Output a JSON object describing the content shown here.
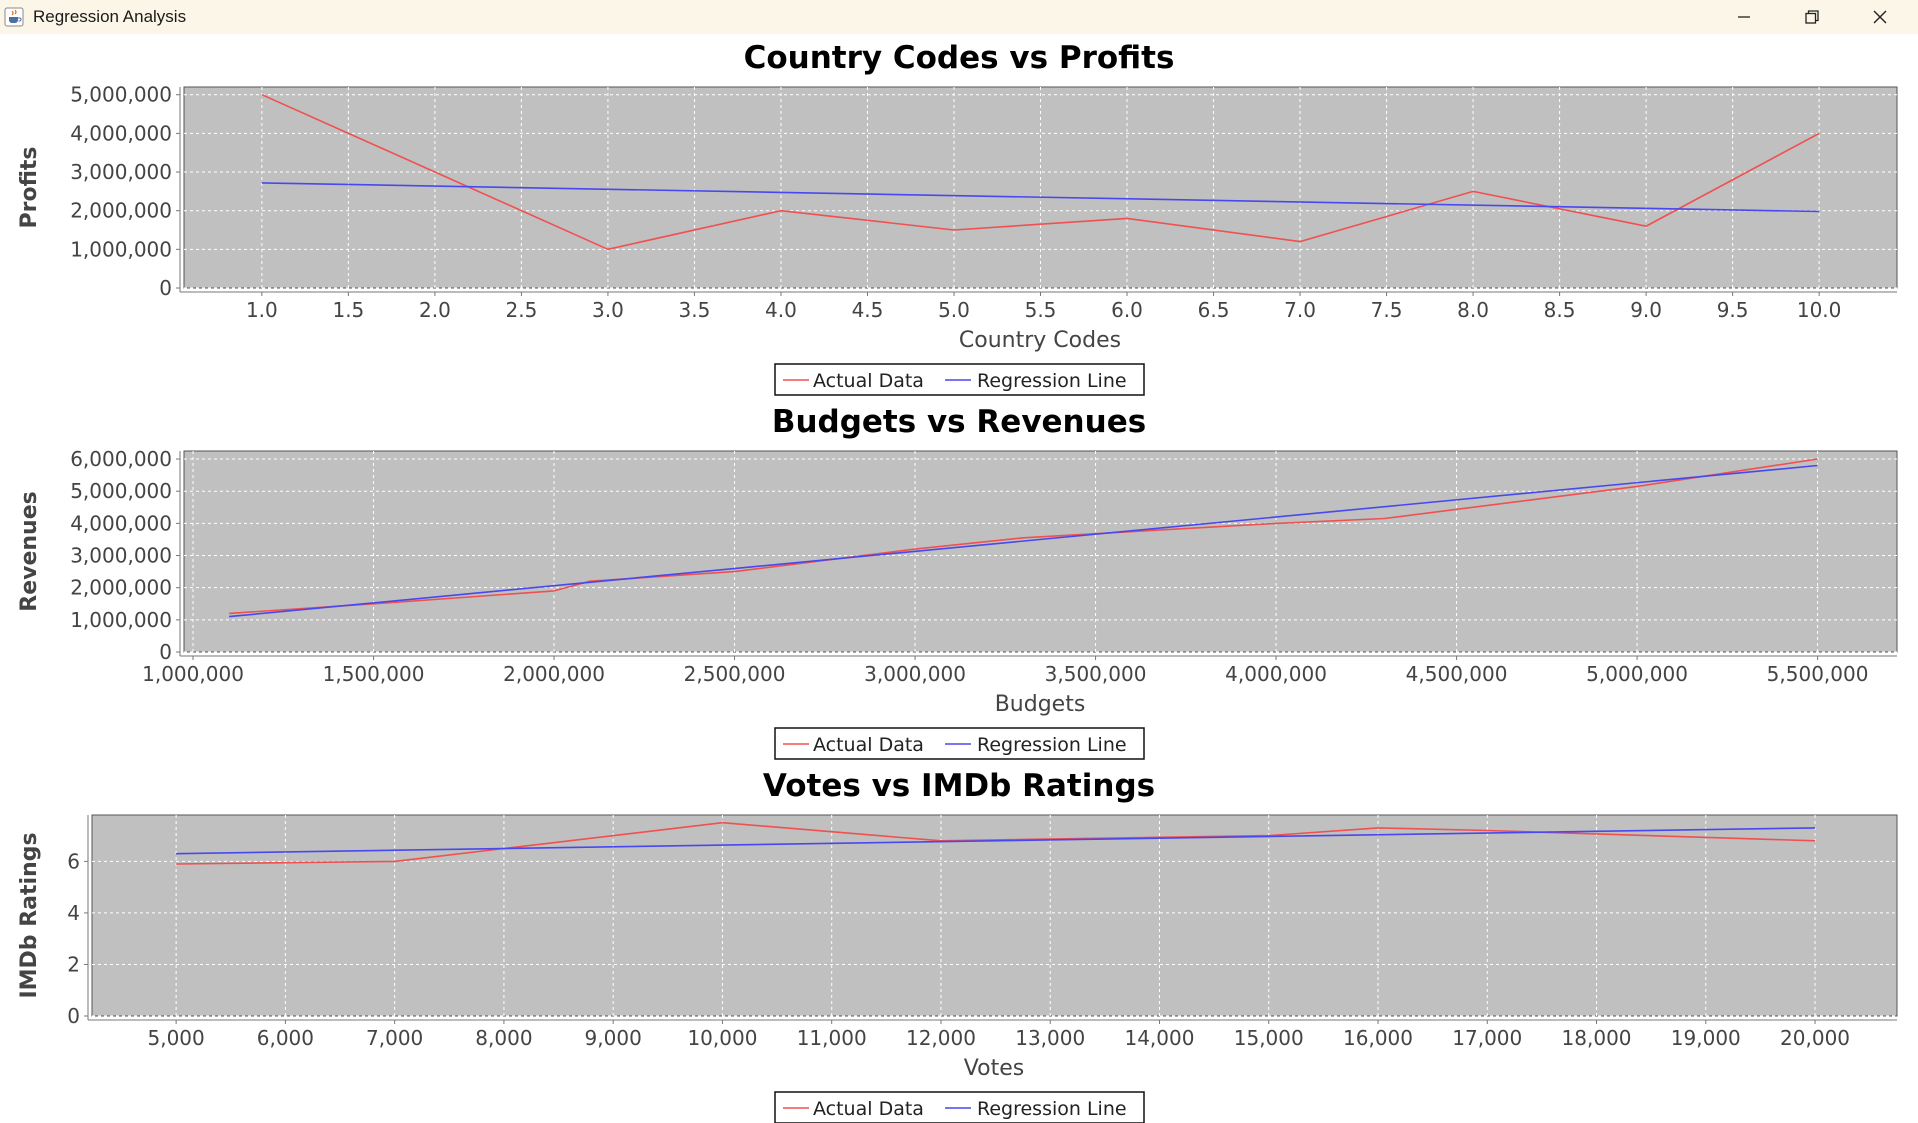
{
  "window": {
    "title": "Regression Analysis",
    "icons": {
      "app": "java-cup-icon",
      "minimize": "minimize-icon",
      "maximize": "restore-icon",
      "close": "close-icon"
    }
  },
  "colors": {
    "actual": "#f05050",
    "regression": "#4848f0",
    "plot_bg": "#c0c0c0",
    "grid": "#ffffff"
  },
  "chart_data": [
    {
      "type": "line",
      "title": "Country Codes vs Profits",
      "xlabel": "Country Codes",
      "ylabel": "Profits",
      "xlim": [
        0.55,
        10.45
      ],
      "ylim": [
        0,
        5200000
      ],
      "xticks": [
        1.0,
        1.5,
        2.0,
        2.5,
        3.0,
        3.5,
        4.0,
        4.5,
        5.0,
        5.5,
        6.0,
        6.5,
        7.0,
        7.5,
        8.0,
        8.5,
        9.0,
        9.5,
        10.0
      ],
      "xtick_labels": [
        "1.0",
        "1.5",
        "2.0",
        "2.5",
        "3.0",
        "3.5",
        "4.0",
        "4.5",
        "5.0",
        "5.5",
        "6.0",
        "6.5",
        "7.0",
        "7.5",
        "8.0",
        "8.5",
        "9.0",
        "9.5",
        "10.0"
      ],
      "yticks": [
        0,
        1000000,
        2000000,
        3000000,
        4000000,
        5000000
      ],
      "ytick_labels": [
        "0",
        "1,000,000",
        "2,000,000",
        "3,000,000",
        "4,000,000",
        "5,000,000"
      ],
      "grid": true,
      "legend": "bottom",
      "series": [
        {
          "name": "Actual Data",
          "color": "#f05050",
          "x": [
            1,
            2,
            3,
            4,
            5,
            6,
            7,
            8,
            9,
            10
          ],
          "y": [
            5000000,
            3000000,
            1000000,
            2000000,
            1500000,
            1800000,
            1200000,
            2500000,
            1600000,
            4000000
          ]
        },
        {
          "name": "Regression Line",
          "color": "#4848f0",
          "x": [
            1,
            10
          ],
          "y": [
            2720000,
            1980000
          ]
        }
      ]
    },
    {
      "type": "line",
      "title": "Budgets vs Revenues",
      "xlabel": "Budgets",
      "ylabel": "Revenues",
      "xlim": [
        975000,
        5720000
      ],
      "ylim": [
        0,
        6250000
      ],
      "xticks": [
        1000000,
        1500000,
        2000000,
        2500000,
        3000000,
        3500000,
        4000000,
        4500000,
        5000000,
        5500000
      ],
      "xtick_labels": [
        "1,000,000",
        "1,500,000",
        "2,000,000",
        "2,500,000",
        "3,000,000",
        "3,500,000",
        "4,000,000",
        "4,500,000",
        "5,000,000",
        "5,500,000"
      ],
      "yticks": [
        0,
        1000000,
        2000000,
        3000000,
        4000000,
        5000000,
        6000000
      ],
      "ytick_labels": [
        "0",
        "1,000,000",
        "2,000,000",
        "3,000,000",
        "4,000,000",
        "5,000,000",
        "6,000,000"
      ],
      "grid": true,
      "legend": "bottom",
      "series": [
        {
          "name": "Actual Data",
          "color": "#f05050",
          "x": [
            1100000,
            1500000,
            2000000,
            2100000,
            2500000,
            3000000,
            3300000,
            4000000,
            4300000,
            5000000,
            5500000
          ],
          "y": [
            1200000,
            1500000,
            1900000,
            2200000,
            2500000,
            3200000,
            3550000,
            4000000,
            4150000,
            5150000,
            6000000
          ]
        },
        {
          "name": "Regression Line",
          "color": "#4848f0",
          "x": [
            1100000,
            5500000
          ],
          "y": [
            1100000,
            5800000
          ]
        }
      ]
    },
    {
      "type": "line",
      "title": "Votes vs IMDb Ratings",
      "xlabel": "Votes",
      "ylabel": "IMDb Ratings",
      "xlim": [
        4230,
        20750
      ],
      "ylim": [
        0,
        7.8
      ],
      "xticks": [
        5000,
        6000,
        7000,
        8000,
        9000,
        10000,
        11000,
        12000,
        13000,
        14000,
        15000,
        16000,
        17000,
        18000,
        19000,
        20000
      ],
      "xtick_labels": [
        "5,000",
        "6,000",
        "7,000",
        "8,000",
        "9,000",
        "10,000",
        "11,000",
        "12,000",
        "13,000",
        "14,000",
        "15,000",
        "16,000",
        "17,000",
        "18,000",
        "19,000",
        "20,000"
      ],
      "yticks": [
        0,
        2,
        4,
        6
      ],
      "ytick_labels": [
        "0",
        "2",
        "4",
        "6"
      ],
      "grid": true,
      "legend": "bottom",
      "series": [
        {
          "name": "Actual Data",
          "color": "#f05050",
          "x": [
            5000,
            7000,
            8000,
            10000,
            12000,
            15000,
            16000,
            17000,
            20000
          ],
          "y": [
            5.9,
            6.0,
            6.5,
            7.5,
            6.8,
            7.0,
            7.3,
            7.2,
            6.8
          ]
        },
        {
          "name": "Regression Line",
          "color": "#4848f0",
          "x": [
            5000,
            20000
          ],
          "y": [
            6.3,
            7.3
          ]
        }
      ]
    }
  ]
}
